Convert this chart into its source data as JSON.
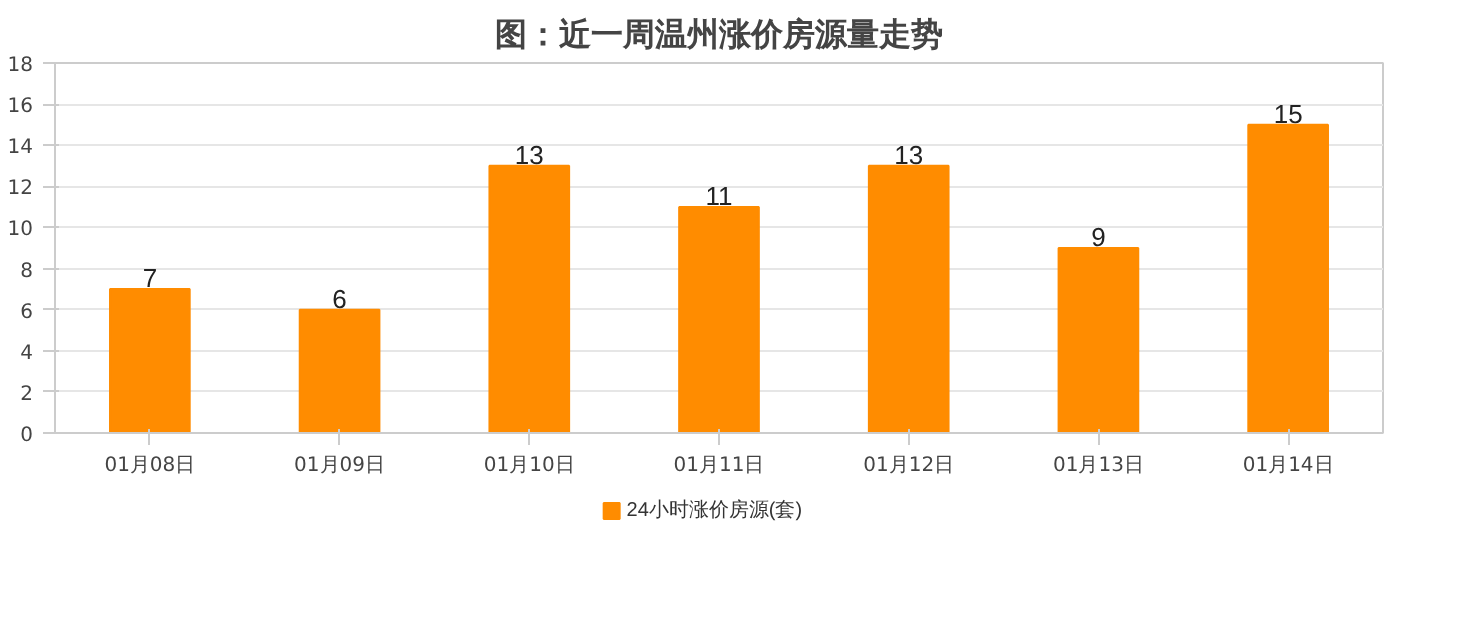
{
  "chart_data": {
    "type": "bar",
    "title": "图：近一周温州涨价房源量走势",
    "categories": [
      "01月08日",
      "01月09日",
      "01月10日",
      "01月11日",
      "01月12日",
      "01月13日",
      "01月14日"
    ],
    "series": [
      {
        "name": "24小时涨价房源(套)",
        "color": "#ff8c00",
        "values": [
          7,
          6,
          13,
          11,
          13,
          9,
          15
        ]
      }
    ],
    "ylim": [
      0,
      18
    ],
    "yticks": [
      0,
      2,
      4,
      6,
      8,
      10,
      12,
      14,
      16,
      18
    ],
    "grid": "y",
    "legend": "bottom",
    "data_labels": true
  }
}
